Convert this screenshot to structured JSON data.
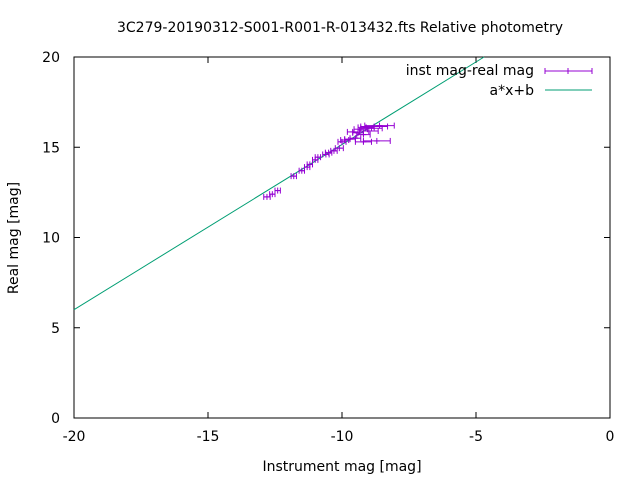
{
  "chart_data": {
    "type": "scatter",
    "title": "3C279-20190312-S001-R001-R-013432.fts Relative photometry",
    "xlabel": "Instrument mag [mag]",
    "ylabel": "Real mag [mag]",
    "xlim": [
      -20,
      0
    ],
    "ylim": [
      0,
      20
    ],
    "x_ticks": [
      "-20",
      "-15",
      "-10",
      "-5",
      "0"
    ],
    "y_ticks": [
      "0",
      "5",
      "10",
      "15",
      "20"
    ],
    "grid": false,
    "legend_position": "top-right",
    "series": [
      {
        "name": "inst mag-real mag",
        "style": "points-with-x-errorbars",
        "color": "#9400d3",
        "points": [
          {
            "x": -12.8,
            "y": 12.25,
            "xerr": 0.12
          },
          {
            "x": -12.6,
            "y": 12.4,
            "xerr": 0.1
          },
          {
            "x": -12.4,
            "y": 12.6,
            "xerr": 0.1
          },
          {
            "x": -11.8,
            "y": 13.4,
            "xerr": 0.1
          },
          {
            "x": -11.5,
            "y": 13.7,
            "xerr": 0.1
          },
          {
            "x": -11.3,
            "y": 13.9,
            "xerr": 0.1
          },
          {
            "x": -11.2,
            "y": 14.05,
            "xerr": 0.1
          },
          {
            "x": -11.0,
            "y": 14.3,
            "xerr": 0.1
          },
          {
            "x": -10.9,
            "y": 14.45,
            "xerr": 0.1
          },
          {
            "x": -10.6,
            "y": 14.6,
            "xerr": 0.12
          },
          {
            "x": -10.5,
            "y": 14.7,
            "xerr": 0.12
          },
          {
            "x": -10.3,
            "y": 14.8,
            "xerr": 0.12
          },
          {
            "x": -10.1,
            "y": 14.95,
            "xerr": 0.15
          },
          {
            "x": -10.0,
            "y": 15.3,
            "xerr": 0.15
          },
          {
            "x": -9.9,
            "y": 15.4,
            "xerr": 0.15
          },
          {
            "x": -9.7,
            "y": 15.45,
            "xerr": 0.2
          },
          {
            "x": -9.5,
            "y": 15.5,
            "xerr": 0.2
          },
          {
            "x": -9.4,
            "y": 15.8,
            "xerr": 0.2
          },
          {
            "x": -9.3,
            "y": 16.0,
            "xerr": 0.25
          },
          {
            "x": -9.2,
            "y": 15.7,
            "xerr": 0.25
          },
          {
            "x": -9.1,
            "y": 16.1,
            "xerr": 0.3
          },
          {
            "x": -9.0,
            "y": 15.9,
            "xerr": 0.35
          },
          {
            "x": -8.9,
            "y": 16.05,
            "xerr": 0.4
          },
          {
            "x": -8.8,
            "y": 16.15,
            "xerr": 0.5
          },
          {
            "x": -8.7,
            "y": 15.35,
            "xerr": 0.5
          },
          {
            "x": -8.6,
            "y": 16.2,
            "xerr": 0.55
          },
          {
            "x": -9.6,
            "y": 15.85,
            "xerr": 0.2
          },
          {
            "x": -9.2,
            "y": 15.3,
            "xerr": 0.3
          }
        ]
      },
      {
        "name": "a*x+b",
        "style": "line",
        "color": "#009e73",
        "line": {
          "x0": -20,
          "y0": 6.0,
          "x1": -4.7,
          "y1": 20
        }
      }
    ]
  }
}
